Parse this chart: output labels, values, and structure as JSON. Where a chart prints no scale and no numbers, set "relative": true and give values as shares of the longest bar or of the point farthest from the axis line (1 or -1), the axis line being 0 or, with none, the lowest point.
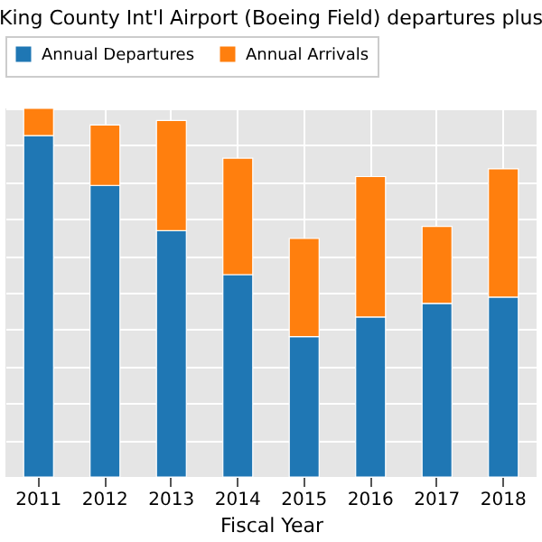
{
  "chart_data": {
    "type": "bar",
    "title": "King County Int'l Airport (Boeing Field) departures plus",
    "xlabel": "Fiscal Year",
    "categories": [
      "2011",
      "2012",
      "2013",
      "2014",
      "2015",
      "2016",
      "2017",
      "2018"
    ],
    "relative": true,
    "stacked": true,
    "grid": true,
    "legend": "top",
    "series": [
      {
        "name": "Annual Departures",
        "color": "#1f77b4",
        "values": [
          0.926,
          0.791,
          0.668,
          0.549,
          0.381,
          0.434,
          0.471,
          0.488
        ]
      },
      {
        "name": "Annual Arrivals",
        "color": "#ff7f0e",
        "values": [
          0.074,
          0.164,
          0.299,
          0.316,
          0.266,
          0.381,
          0.209,
          0.348
        ]
      }
    ]
  }
}
